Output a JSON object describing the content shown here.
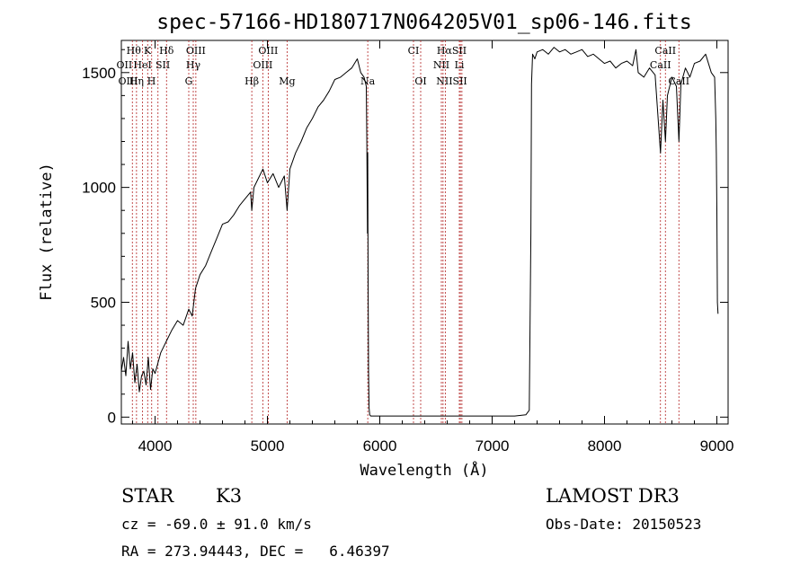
{
  "chart_data": {
    "type": "line",
    "title": "spec-57166-HD180717N064205V01_sp06-146.fits",
    "xlabel": "Wavelength (Å)",
    "ylabel": "Flux (relative)",
    "xlim": [
      3700,
      9100
    ],
    "ylim": [
      -30,
      1640
    ],
    "x_ticks": [
      4000,
      5000,
      6000,
      7000,
      8000,
      9000
    ],
    "y_ticks": [
      0,
      500,
      1000,
      1500
    ],
    "x_tick_labels": [
      "4000",
      "5000",
      "6000",
      "7000",
      "8000",
      "9000"
    ],
    "y_tick_labels": [
      "0",
      "500",
      "1000",
      "1500"
    ],
    "grid": false,
    "series": [
      {
        "name": "flux",
        "x": [
          3700,
          3720,
          3740,
          3760,
          3780,
          3800,
          3820,
          3840,
          3860,
          3880,
          3900,
          3920,
          3940,
          3960,
          3980,
          4000,
          4050,
          4100,
          4150,
          4200,
          4250,
          4300,
          4330,
          4360,
          4400,
          4450,
          4500,
          4550,
          4600,
          4650,
          4700,
          4750,
          4800,
          4850,
          4861,
          4880,
          4920,
          4960,
          5000,
          5050,
          5100,
          5150,
          5175,
          5200,
          5250,
          5300,
          5350,
          5400,
          5450,
          5500,
          5550,
          5600,
          5650,
          5700,
          5750,
          5800,
          5830,
          5860,
          5880,
          5885,
          5890,
          5893,
          5896,
          5900,
          5905,
          5910,
          5920,
          6000,
          6500,
          7000,
          7200,
          7300,
          7330,
          7345,
          7350,
          7360,
          7380,
          7400,
          7450,
          7500,
          7550,
          7600,
          7650,
          7700,
          7750,
          7800,
          7850,
          7900,
          7950,
          8000,
          8050,
          8100,
          8150,
          8200,
          8250,
          8280,
          8300,
          8350,
          8400,
          8450,
          8498,
          8520,
          8542,
          8560,
          8600,
          8640,
          8662,
          8680,
          8720,
          8760,
          8800,
          8850,
          8900,
          8950,
          8980,
          8990,
          8995,
          9000,
          9005,
          9010
        ],
        "values": [
          200,
          260,
          180,
          330,
          210,
          280,
          150,
          230,
          110,
          180,
          200,
          140,
          260,
          120,
          210,
          190,
          280,
          330,
          380,
          420,
          400,
          470,
          440,
          560,
          620,
          660,
          720,
          780,
          840,
          850,
          880,
          920,
          950,
          980,
          900,
          1000,
          1040,
          1080,
          1020,
          1060,
          1000,
          1050,
          900,
          1080,
          1150,
          1200,
          1260,
          1300,
          1350,
          1380,
          1420,
          1470,
          1480,
          1500,
          1520,
          1560,
          1500,
          1480,
          1440,
          1200,
          800,
          1150,
          600,
          200,
          40,
          10,
          5,
          5,
          5,
          5,
          5,
          10,
          30,
          800,
          1450,
          1580,
          1560,
          1590,
          1600,
          1580,
          1610,
          1590,
          1600,
          1580,
          1590,
          1600,
          1570,
          1580,
          1560,
          1540,
          1550,
          1520,
          1540,
          1550,
          1530,
          1600,
          1500,
          1480,
          1520,
          1490,
          1150,
          1380,
          1200,
          1400,
          1480,
          1440,
          1200,
          1450,
          1520,
          1480,
          1540,
          1550,
          1580,
          1500,
          1480,
          1300,
          1150,
          900,
          500,
          450
        ]
      }
    ],
    "line_marks": [
      {
        "wl": 3798
      },
      {
        "wl": 3835
      },
      {
        "wl": 3889
      },
      {
        "wl": 3934
      },
      {
        "wl": 3970
      },
      {
        "wl": 4026
      },
      {
        "wl": 4102
      },
      {
        "wl": 4300
      },
      {
        "wl": 4340
      },
      {
        "wl": 4363
      },
      {
        "wl": 4861
      },
      {
        "wl": 4959
      },
      {
        "wl": 5007
      },
      {
        "wl": 5175
      },
      {
        "wl": 5893
      },
      {
        "wl": 6300
      },
      {
        "wl": 6364
      },
      {
        "wl": 6548
      },
      {
        "wl": 6563
      },
      {
        "wl": 6583
      },
      {
        "wl": 6708
      },
      {
        "wl": 6717
      },
      {
        "wl": 6731
      },
      {
        "wl": 8498
      },
      {
        "wl": 8542
      },
      {
        "wl": 8662
      }
    ],
    "line_labels": [
      {
        "text": "Hθ",
        "wl": 3810,
        "row": 1
      },
      {
        "text": "K",
        "wl": 3933,
        "row": 1
      },
      {
        "text": "Hδ",
        "wl": 4102,
        "row": 1
      },
      {
        "text": "OIII",
        "wl": 4363,
        "row": 1
      },
      {
        "text": "OIII",
        "wl": 5007,
        "row": 1
      },
      {
        "text": "CI",
        "wl": 6300,
        "row": 1
      },
      {
        "text": "HαSII",
        "wl": 6640,
        "row": 1
      },
      {
        "text": "CaII",
        "wl": 8542,
        "row": 1
      },
      {
        "text": "OII",
        "wl": 3727,
        "row": 2
      },
      {
        "text": "HeI",
        "wl": 3889,
        "row": 2
      },
      {
        "text": "SII",
        "wl": 4069,
        "row": 2
      },
      {
        "text": "Hγ",
        "wl": 4340,
        "row": 2
      },
      {
        "text": "OIII",
        "wl": 4959,
        "row": 2
      },
      {
        "text": "NII",
        "wl": 6548,
        "row": 2
      },
      {
        "text": "Li",
        "wl": 6708,
        "row": 2
      },
      {
        "text": "CaII",
        "wl": 8498,
        "row": 2
      },
      {
        "text": "OIII",
        "wl": 3760,
        "row": 3
      },
      {
        "text": "Hη",
        "wl": 3835,
        "row": 3
      },
      {
        "text": "H",
        "wl": 3968,
        "row": 3
      },
      {
        "text": "G",
        "wl": 4300,
        "row": 3
      },
      {
        "text": "Hβ",
        "wl": 4861,
        "row": 3
      },
      {
        "text": "Mg",
        "wl": 5175,
        "row": 3
      },
      {
        "text": "Na",
        "wl": 5893,
        "row": 3
      },
      {
        "text": "OI",
        "wl": 6364,
        "row": 3
      },
      {
        "text": "NIISII",
        "wl": 6640,
        "row": 3
      },
      {
        "text": "CaII",
        "wl": 8662,
        "row": 3
      }
    ]
  },
  "info": {
    "type_label": "STAR",
    "subclass": "K3",
    "survey": "LAMOST DR3",
    "cz": "cz = -69.0 ± 91.0 km/s",
    "obs_date": "Obs-Date: 20150523",
    "coords": "RA = 273.94443, DEC =   6.46397"
  },
  "colors": {
    "spectrum": "#000000",
    "line_marks": "#b22222",
    "axes": "#000000"
  }
}
